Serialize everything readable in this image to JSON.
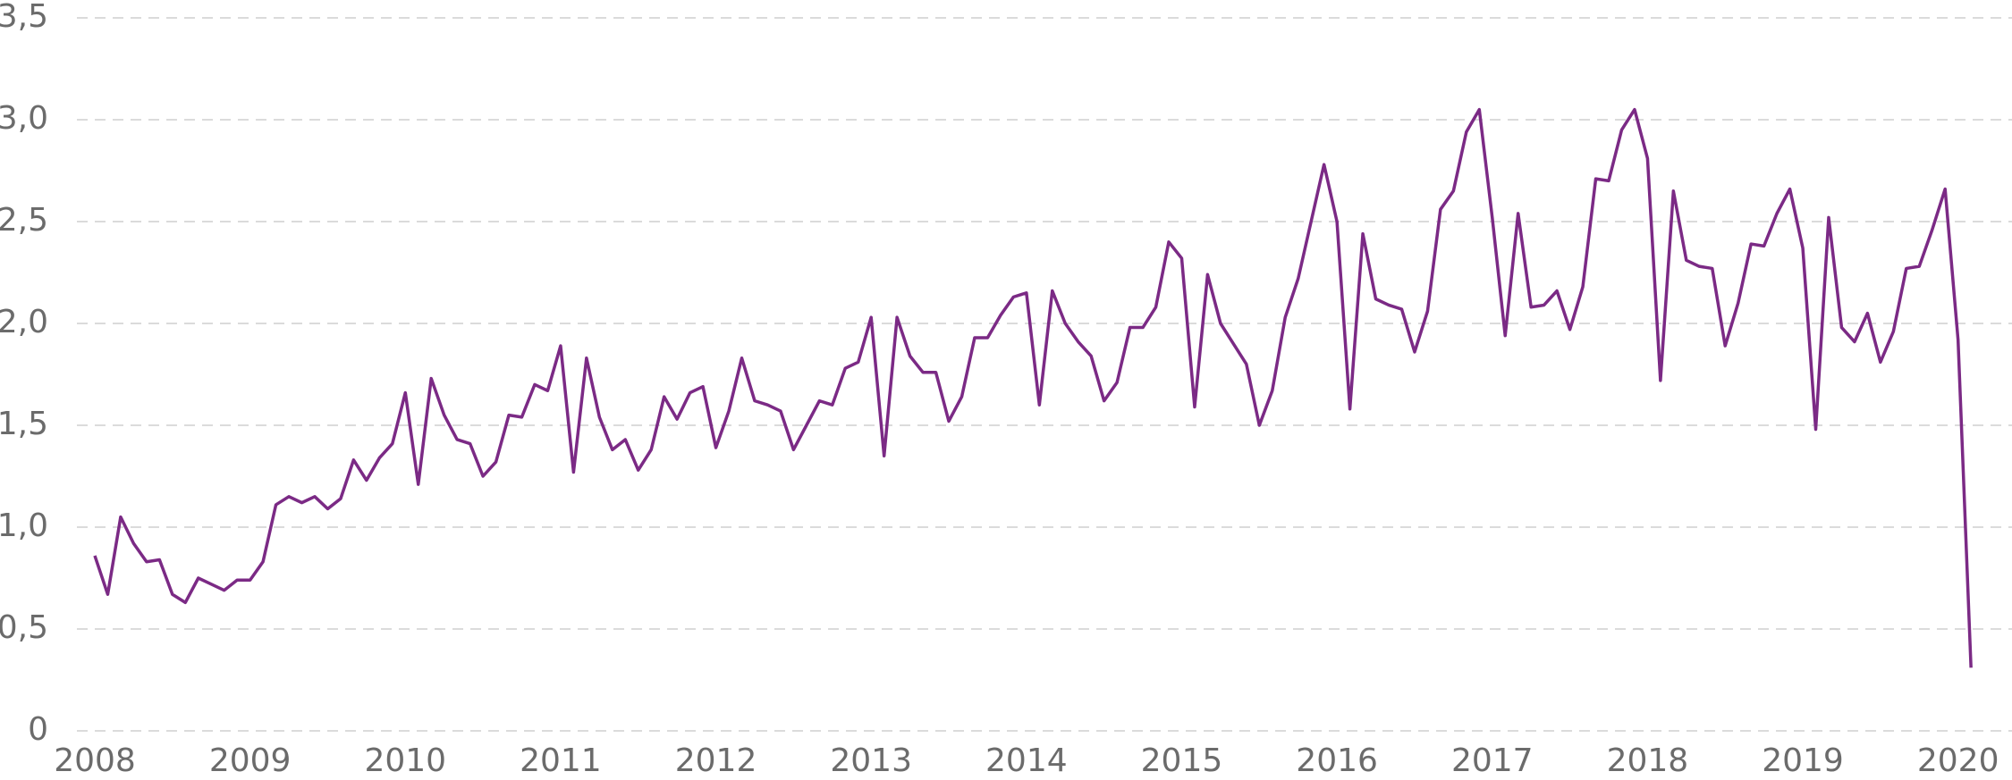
{
  "chart_data": {
    "type": "line",
    "color": "#7b2a85",
    "grid": true,
    "ylim": [
      0,
      3.5
    ],
    "yticks": [
      0,
      {
        "value": 0.5,
        "label": "0,5"
      },
      {
        "value": 1.0,
        "label": "1,0"
      },
      {
        "value": 1.5,
        "label": "1,5"
      },
      {
        "value": 2.0,
        "label": "2,0"
      },
      {
        "value": 2.5,
        "label": "2,5"
      },
      {
        "value": 3.0,
        "label": "3,0"
      },
      {
        "value": 3.5,
        "label": "3,5"
      }
    ],
    "categories": [
      "2008",
      null,
      null,
      null,
      null,
      null,
      null,
      null,
      null,
      null,
      null,
      null,
      "2009",
      null,
      null,
      null,
      null,
      null,
      null,
      null,
      null,
      null,
      null,
      null,
      "2010",
      null,
      null,
      null,
      null,
      null,
      null,
      null,
      null,
      null,
      null,
      null,
      "2011",
      null,
      null,
      null,
      null,
      null,
      null,
      null,
      null,
      null,
      null,
      null,
      "2012",
      null,
      null,
      null,
      null,
      null,
      null,
      null,
      null,
      null,
      null,
      null,
      "2013",
      null,
      null,
      null,
      null,
      null,
      null,
      null,
      null,
      null,
      null,
      null,
      "2014",
      null,
      null,
      null,
      null,
      null,
      null,
      null,
      null,
      null,
      null,
      null,
      "2015",
      null,
      null,
      null,
      null,
      null,
      null,
      null,
      null,
      null,
      null,
      null,
      "2016",
      null,
      null,
      null,
      null,
      null,
      null,
      null,
      null,
      null,
      null,
      null,
      "2017",
      null,
      null,
      null,
      null,
      null,
      null,
      null,
      null,
      null,
      null,
      null,
      "2018",
      null,
      null,
      null,
      null,
      null,
      null,
      null,
      null,
      null,
      null,
      null,
      "2019",
      null,
      null,
      null,
      null,
      null,
      null,
      null,
      null,
      null,
      null,
      null,
      "2020",
      null
    ],
    "values": [
      0.86,
      0.67,
      1.05,
      0.92,
      0.83,
      0.84,
      0.67,
      0.63,
      0.75,
      0.72,
      0.69,
      0.74,
      0.74,
      0.83,
      1.11,
      1.15,
      1.12,
      1.15,
      1.09,
      1.14,
      1.33,
      1.23,
      1.34,
      1.41,
      1.66,
      1.21,
      1.73,
      1.55,
      1.43,
      1.41,
      1.25,
      1.32,
      1.55,
      1.54,
      1.7,
      1.67,
      1.89,
      1.27,
      1.83,
      1.54,
      1.38,
      1.43,
      1.28,
      1.38,
      1.64,
      1.53,
      1.66,
      1.69,
      1.39,
      1.57,
      1.83,
      1.62,
      1.6,
      1.57,
      1.38,
      1.5,
      1.62,
      1.6,
      1.78,
      1.81,
      2.03,
      1.35,
      2.03,
      1.84,
      1.76,
      1.76,
      1.52,
      1.64,
      1.93,
      1.93,
      2.04,
      2.13,
      2.15,
      1.6,
      2.16,
      2.0,
      1.91,
      1.84,
      1.62,
      1.71,
      1.98,
      1.98,
      2.08,
      2.4,
      2.32,
      1.59,
      2.24,
      2.0,
      1.9,
      1.8,
      1.5,
      1.67,
      2.03,
      2.22,
      2.5,
      2.78,
      2.5,
      1.58,
      2.44,
      2.12,
      2.09,
      2.07,
      1.86,
      2.06,
      2.56,
      2.65,
      2.94,
      3.05,
      2.52,
      1.94,
      2.54,
      2.08,
      2.09,
      2.16,
      1.97,
      2.18,
      2.71,
      2.7,
      2.95,
      3.05,
      2.81,
      1.72,
      2.65,
      2.31,
      2.28,
      2.27,
      1.89,
      2.1,
      2.39,
      2.38,
      2.54,
      2.66,
      2.37,
      1.48,
      2.52,
      1.98,
      1.91,
      2.05,
      1.81,
      1.96,
      2.27,
      2.28,
      2.46,
      2.66,
      1.92,
      0.31
    ]
  }
}
